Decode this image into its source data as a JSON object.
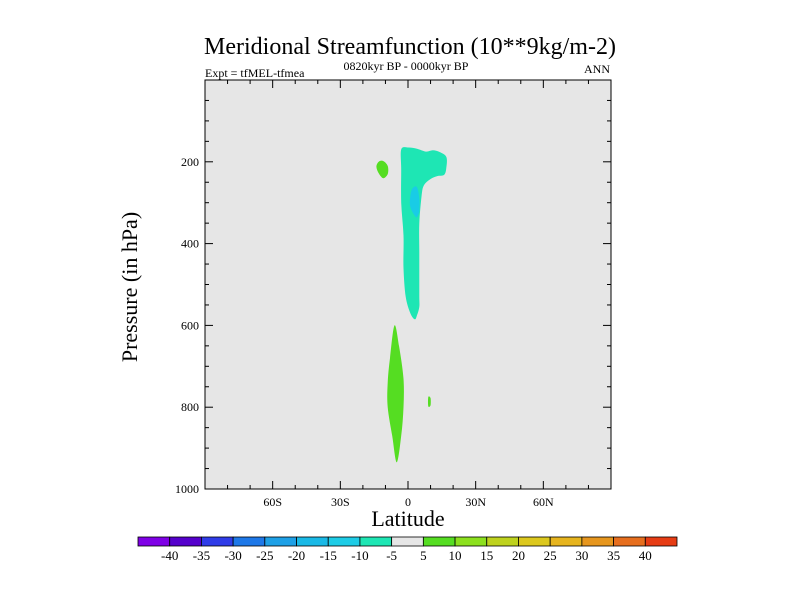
{
  "chart_data": {
    "type": "contour",
    "title": "Meridional Streamfunction (10**9kg/m-2)",
    "left_subtitle": "Expt = tfMEL-tfmea",
    "center_subtitle": "0820kyr BP - 0000kyr BP",
    "right_subtitle": "ANN",
    "xlabel": "Latitude",
    "ylabel": "Pressure (in hPa)",
    "xlim": [
      -90,
      90
    ],
    "ylim": [
      1000,
      0
    ],
    "x_ticks": [
      {
        "value": -60,
        "label": "60S"
      },
      {
        "value": -30,
        "label": "30S"
      },
      {
        "value": 0,
        "label": "0"
      },
      {
        "value": 30,
        "label": "30N"
      },
      {
        "value": 60,
        "label": "60N"
      }
    ],
    "y_ticks": [
      {
        "value": 200,
        "label": "200"
      },
      {
        "value": 400,
        "label": "400"
      },
      {
        "value": 600,
        "label": "600"
      },
      {
        "value": 800,
        "label": "800"
      },
      {
        "value": 1000,
        "label": "1000"
      }
    ],
    "background_color": "#e6e6e6",
    "regions": [
      {
        "name": "nh-upper-negative",
        "level": "-10 to -5",
        "color": "#1ee6b4",
        "points": [
          [
            -3,
            170
          ],
          [
            0,
            165
          ],
          [
            4,
            168
          ],
          [
            8,
            175
          ],
          [
            11,
            172
          ],
          [
            14,
            176
          ],
          [
            17,
            188
          ],
          [
            17,
            215
          ],
          [
            16,
            232
          ],
          [
            13,
            235
          ],
          [
            10,
            242
          ],
          [
            7,
            258
          ],
          [
            6,
            285
          ],
          [
            5,
            350
          ],
          [
            5,
            420
          ],
          [
            5,
            480
          ],
          [
            5,
            530
          ],
          [
            5,
            555
          ],
          [
            4,
            575
          ],
          [
            3,
            585
          ],
          [
            1,
            570
          ],
          [
            -1,
            530
          ],
          [
            -2,
            460
          ],
          [
            -2,
            380
          ],
          [
            -3,
            300
          ],
          [
            -3,
            220
          ]
        ]
      },
      {
        "name": "nh-upper-core",
        "level": "-15 to -10",
        "color": "#19cce6",
        "points": [
          [
            2,
            265
          ],
          [
            4,
            262
          ],
          [
            5,
            290
          ],
          [
            5,
            320
          ],
          [
            4,
            335
          ],
          [
            3,
            332
          ],
          [
            1,
            310
          ],
          [
            1,
            285
          ]
        ]
      },
      {
        "name": "sh-upper-positive",
        "level": "5 to 10",
        "color": "#55dd22",
        "points": [
          [
            -13,
            200
          ],
          [
            -11,
            198
          ],
          [
            -9,
            210
          ],
          [
            -9,
            230
          ],
          [
            -11,
            240
          ],
          [
            -13,
            228
          ],
          [
            -14,
            212
          ]
        ]
      },
      {
        "name": "sh-lower-positive",
        "level": "5 to 10",
        "color": "#55dd22",
        "points": [
          [
            -6,
            600
          ],
          [
            -4,
            650
          ],
          [
            -2,
            730
          ],
          [
            -2,
            800
          ],
          [
            -3,
            870
          ],
          [
            -5,
            935
          ],
          [
            -7,
            870
          ],
          [
            -9,
            800
          ],
          [
            -9,
            740
          ],
          [
            -8,
            680
          ]
        ]
      },
      {
        "name": "nh-lower-speck",
        "level": "5 to 10",
        "color": "#55dd22",
        "points": [
          [
            9,
            775
          ],
          [
            10,
            778
          ],
          [
            10,
            795
          ],
          [
            9,
            798
          ]
        ]
      }
    ],
    "colorbar": {
      "labels": [
        "-40",
        "-35",
        "-30",
        "-25",
        "-20",
        "-15",
        "-10",
        "-5",
        "5",
        "10",
        "15",
        "20",
        "25",
        "30",
        "35",
        "40"
      ],
      "colors": [
        "#7f00e6",
        "#5500cc",
        "#2f3ce8",
        "#1e78e8",
        "#1ea0e6",
        "#19b9e6",
        "#1ecce6",
        "#1ee6b4",
        "#e6e6e6",
        "#55dd22",
        "#8ce01e",
        "#bed21e",
        "#dcc81e",
        "#e6b41e",
        "#e6961e",
        "#e66e1e",
        "#e63c14"
      ]
    }
  }
}
